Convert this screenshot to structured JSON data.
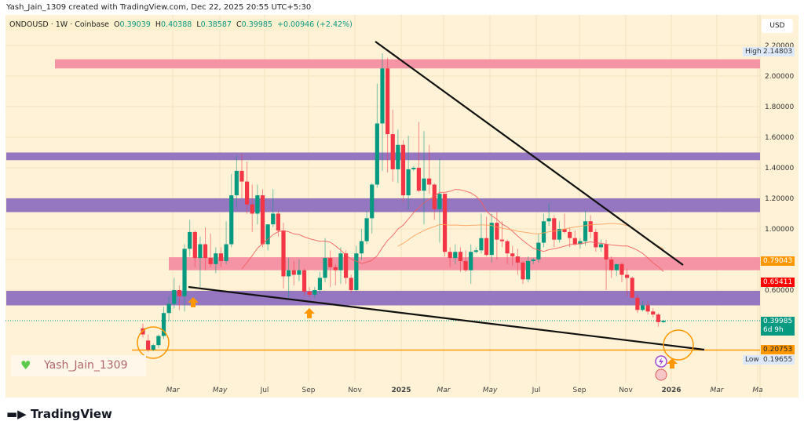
{
  "caption": "Yash_Jain_1309 created with TradingView.com, Dec 22, 2025 20:55 UTC+5:30",
  "legend": {
    "symbol": "ONDOUSD · 1W · Coinbase",
    "o_label": "O",
    "o": "0.39039",
    "h_label": "H",
    "h": "0.40388",
    "l_label": "L",
    "l": "0.38587",
    "c_label": "C",
    "c": "0.39985",
    "change": "+0.00946 (+2.42%)"
  },
  "price_axis": {
    "currency": "USD",
    "ticks": [
      "2.20000",
      "2.00000",
      "1.80000",
      "1.60000",
      "1.40000",
      "1.20000",
      "1.00000",
      "0.60000"
    ],
    "tick_values": [
      2.2,
      2.0,
      1.8,
      1.6,
      1.4,
      1.2,
      1.0,
      0.6
    ],
    "high_label": "High",
    "high": "2.14803",
    "low_label": "Low",
    "low": "0.19655",
    "tags": {
      "orange_level": "0.79043",
      "red_ma": "0.65411",
      "last_price": "0.39985",
      "countdown": "6d 9h",
      "support": "0.20753"
    }
  },
  "time_axis": [
    "Mar",
    "May",
    "Jul",
    "Sep",
    "Nov",
    "2025",
    "Mar",
    "May",
    "Jul",
    "Sep",
    "Nov",
    "2026",
    "Mar",
    "Ma"
  ],
  "watermark": "Yash_Jain_1309",
  "brand": "TradingView",
  "colors": {
    "up": "#089981",
    "down": "#f23645",
    "pink_zone": "#f48aa0",
    "purple_zone": "#8f6fc0",
    "orange": "#ff9800",
    "ma_fast": "#f25a5a",
    "ma_slow": "#ffa057"
  },
  "zones": [
    {
      "type": "pink",
      "from": 2.05,
      "to": 2.11
    },
    {
      "type": "purple",
      "from": 1.45,
      "to": 1.5
    },
    {
      "type": "purple",
      "from": 1.11,
      "to": 1.2
    },
    {
      "type": "pink",
      "from": 0.73,
      "to": 0.815
    },
    {
      "type": "purple",
      "from": 0.5,
      "to": 0.595
    }
  ],
  "support_level": 0.20753,
  "chart_data": {
    "type": "candlestick",
    "timeframe": "1W",
    "ohlc": [
      [
        0.35,
        0.38,
        0.29,
        0.31
      ],
      [
        0.27,
        0.31,
        0.197,
        0.21
      ],
      [
        0.21,
        0.25,
        0.2,
        0.24
      ],
      [
        0.24,
        0.31,
        0.22,
        0.3
      ],
      [
        0.3,
        0.49,
        0.28,
        0.45
      ],
      [
        0.45,
        0.56,
        0.4,
        0.51
      ],
      [
        0.51,
        0.68,
        0.48,
        0.6
      ],
      [
        0.6,
        0.63,
        0.47,
        0.56
      ],
      [
        0.56,
        0.9,
        0.46,
        0.87
      ],
      [
        0.87,
        1.06,
        0.82,
        0.98
      ],
      [
        0.98,
        0.99,
        0.75,
        0.81
      ],
      [
        0.81,
        0.95,
        0.62,
        0.9
      ],
      [
        0.9,
        1.01,
        0.73,
        0.81
      ],
      [
        0.81,
        0.97,
        0.75,
        0.77
      ],
      [
        0.77,
        0.88,
        0.71,
        0.84
      ],
      [
        0.84,
        0.88,
        0.75,
        0.79
      ],
      [
        0.79,
        1.05,
        0.77,
        0.9
      ],
      [
        0.9,
        1.36,
        0.88,
        1.22
      ],
      [
        1.22,
        1.48,
        1.14,
        1.38
      ],
      [
        1.38,
        1.49,
        1.2,
        1.31
      ],
      [
        1.31,
        1.44,
        1.1,
        1.16
      ],
      [
        1.16,
        1.29,
        0.98,
        1.1
      ],
      [
        1.1,
        1.29,
        1.03,
        1.22
      ],
      [
        1.22,
        1.26,
        0.88,
        0.9
      ],
      [
        0.9,
        1.03,
        0.86,
        1.03
      ],
      [
        1.03,
        1.26,
        1.01,
        1.1
      ],
      [
        1.1,
        1.12,
        0.95,
        0.99
      ],
      [
        0.99,
        1.04,
        0.61,
        0.69
      ],
      [
        0.69,
        0.81,
        0.55,
        0.73
      ],
      [
        0.73,
        0.79,
        0.63,
        0.7
      ],
      [
        0.7,
        0.8,
        0.66,
        0.73
      ],
      [
        0.73,
        0.74,
        0.56,
        0.59
      ],
      [
        0.59,
        0.62,
        0.55,
        0.57
      ],
      [
        0.57,
        0.62,
        0.55,
        0.6
      ],
      [
        0.6,
        0.72,
        0.58,
        0.68
      ],
      [
        0.68,
        0.94,
        0.65,
        0.81
      ],
      [
        0.81,
        0.86,
        0.62,
        0.75
      ],
      [
        0.75,
        0.77,
        0.63,
        0.73
      ],
      [
        0.73,
        0.88,
        0.64,
        0.84
      ],
      [
        0.84,
        0.86,
        0.64,
        0.68
      ],
      [
        0.68,
        0.7,
        0.58,
        0.6
      ],
      [
        0.6,
        0.89,
        0.59,
        0.84
      ],
      [
        0.84,
        1.0,
        0.8,
        0.92
      ],
      [
        0.92,
        1.12,
        0.9,
        1.07
      ],
      [
        1.07,
        1.3,
        0.97,
        1.29
      ],
      [
        1.29,
        1.95,
        1.27,
        1.69
      ],
      [
        1.69,
        2.148,
        1.38,
        2.05
      ],
      [
        2.05,
        2.12,
        1.37,
        1.62
      ],
      [
        1.62,
        1.78,
        1.31,
        1.39
      ],
      [
        1.39,
        1.65,
        1.3,
        1.55
      ],
      [
        1.55,
        1.58,
        1.18,
        1.22
      ],
      [
        1.22,
        1.61,
        1.13,
        1.39
      ],
      [
        1.39,
        1.41,
        1.38,
        1.4
      ],
      [
        1.4,
        1.7,
        1.24,
        1.25
      ],
      [
        1.25,
        1.64,
        1.03,
        1.33
      ],
      [
        1.33,
        1.55,
        1.23,
        1.29
      ],
      [
        1.29,
        1.3,
        1.06,
        1.13
      ],
      [
        1.13,
        1.46,
        0.91,
        1.23
      ],
      [
        1.23,
        1.23,
        0.82,
        0.85
      ],
      [
        0.85,
        0.88,
        0.75,
        0.81
      ],
      [
        0.81,
        0.9,
        0.77,
        0.85
      ],
      [
        0.85,
        0.88,
        0.72,
        0.79
      ],
      [
        0.79,
        0.86,
        0.72,
        0.73
      ],
      [
        0.73,
        0.9,
        0.64,
        0.85
      ],
      [
        0.85,
        0.88,
        0.84,
        0.86
      ],
      [
        0.86,
        1.1,
        0.84,
        0.94
      ],
      [
        0.94,
        1.08,
        0.82,
        0.83
      ],
      [
        0.83,
        1.1,
        0.78,
        1.04
      ],
      [
        1.04,
        1.11,
        0.8,
        0.93
      ],
      [
        0.93,
        1.05,
        0.88,
        0.92
      ],
      [
        0.92,
        0.93,
        0.77,
        0.84
      ],
      [
        0.84,
        0.89,
        0.76,
        0.82
      ],
      [
        0.82,
        0.87,
        0.7,
        0.78
      ],
      [
        0.78,
        0.79,
        0.64,
        0.67
      ],
      [
        0.67,
        0.82,
        0.65,
        0.79
      ],
      [
        0.79,
        0.81,
        0.77,
        0.8
      ],
      [
        0.8,
        0.97,
        0.78,
        0.91
      ],
      [
        0.91,
        1.1,
        0.88,
        1.05
      ],
      [
        1.05,
        1.17,
        1.02,
        1.07
      ],
      [
        1.07,
        1.09,
        0.88,
        0.93
      ],
      [
        0.93,
        1.05,
        0.91,
        1.0
      ],
      [
        1.0,
        1.1,
        0.97,
        0.98
      ],
      [
        0.98,
        1.01,
        0.88,
        0.94
      ],
      [
        0.94,
        0.99,
        0.89,
        0.9
      ],
      [
        0.9,
        0.94,
        0.87,
        0.92
      ],
      [
        0.92,
        1.12,
        0.89,
        1.05
      ],
      [
        1.05,
        1.09,
        0.94,
        0.98
      ],
      [
        0.98,
        1.0,
        0.85,
        0.88
      ],
      [
        0.88,
        0.93,
        0.85,
        0.9
      ],
      [
        0.9,
        0.93,
        0.6,
        0.8
      ],
      [
        0.8,
        0.82,
        0.68,
        0.73
      ],
      [
        0.73,
        0.77,
        0.69,
        0.77
      ],
      [
        0.77,
        0.78,
        0.65,
        0.7
      ],
      [
        0.7,
        0.74,
        0.56,
        0.68
      ],
      [
        0.68,
        0.69,
        0.55,
        0.55
      ],
      [
        0.55,
        0.57,
        0.45,
        0.47
      ],
      [
        0.47,
        0.53,
        0.46,
        0.5
      ],
      [
        0.5,
        0.53,
        0.44,
        0.46
      ],
      [
        0.46,
        0.48,
        0.42,
        0.44
      ],
      [
        0.44,
        0.45,
        0.36,
        0.39039
      ],
      [
        0.39039,
        0.40388,
        0.38587,
        0.39985
      ]
    ],
    "moving_averages": [
      {
        "period": 20
      },
      {
        "period": 50
      }
    ],
    "ylim": [
      0.1,
      2.3
    ],
    "drawings": {
      "trendline_upper": [
        [
          2025.0,
          2.22
        ],
        [
          2026.1,
          0.75
        ]
      ],
      "trendline_lower": [
        [
          2024.2,
          0.62
        ],
        [
          2026.15,
          0.21
        ]
      ]
    }
  }
}
